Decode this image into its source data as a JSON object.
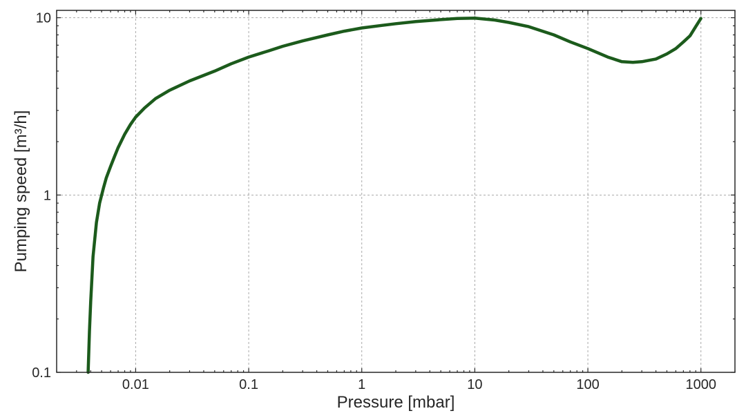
{
  "chart_data": {
    "type": "line",
    "title": "",
    "xlabel": "Pressure [mbar]",
    "ylabel": "Pumping speed [m³/h]",
    "xscale": "log",
    "yscale": "log",
    "xlim": [
      0.002,
      2000
    ],
    "ylim": [
      0.1,
      11
    ],
    "grid": true,
    "legend": "none",
    "x_ticks": [
      {
        "value": 0.01,
        "label": "0.01"
      },
      {
        "value": 0.1,
        "label": "0.1"
      },
      {
        "value": 1,
        "label": "1"
      },
      {
        "value": 10,
        "label": "10"
      },
      {
        "value": 100,
        "label": "100"
      },
      {
        "value": 1000,
        "label": "1000"
      }
    ],
    "y_ticks": [
      {
        "value": 0.1,
        "label": "0.1"
      },
      {
        "value": 1,
        "label": "1"
      },
      {
        "value": 10,
        "label": "10"
      }
    ],
    "series": [
      {
        "color": "#1c5b1c",
        "x": [
          0.0038,
          0.0039,
          0.004,
          0.0042,
          0.0045,
          0.0048,
          0.0052,
          0.0055,
          0.006,
          0.0065,
          0.007,
          0.008,
          0.009,
          0.01,
          0.012,
          0.015,
          0.02,
          0.03,
          0.05,
          0.07,
          0.1,
          0.15,
          0.2,
          0.3,
          0.5,
          0.7,
          1,
          1.5,
          2,
          3,
          5,
          7,
          10,
          15,
          20,
          30,
          50,
          70,
          100,
          150,
          200,
          250,
          300,
          400,
          500,
          600,
          700,
          800,
          900,
          1000
        ],
        "y": [
          0.1,
          0.17,
          0.25,
          0.45,
          0.7,
          0.9,
          1.1,
          1.25,
          1.45,
          1.65,
          1.85,
          2.2,
          2.5,
          2.75,
          3.1,
          3.5,
          3.9,
          4.4,
          5.0,
          5.5,
          6.0,
          6.5,
          6.9,
          7.4,
          8.0,
          8.4,
          8.75,
          9.05,
          9.25,
          9.5,
          9.75,
          9.9,
          9.95,
          9.7,
          9.4,
          8.9,
          8.0,
          7.3,
          6.7,
          6.0,
          5.65,
          5.6,
          5.65,
          5.85,
          6.25,
          6.7,
          7.3,
          7.9,
          8.9,
          9.9
        ]
      }
    ]
  }
}
